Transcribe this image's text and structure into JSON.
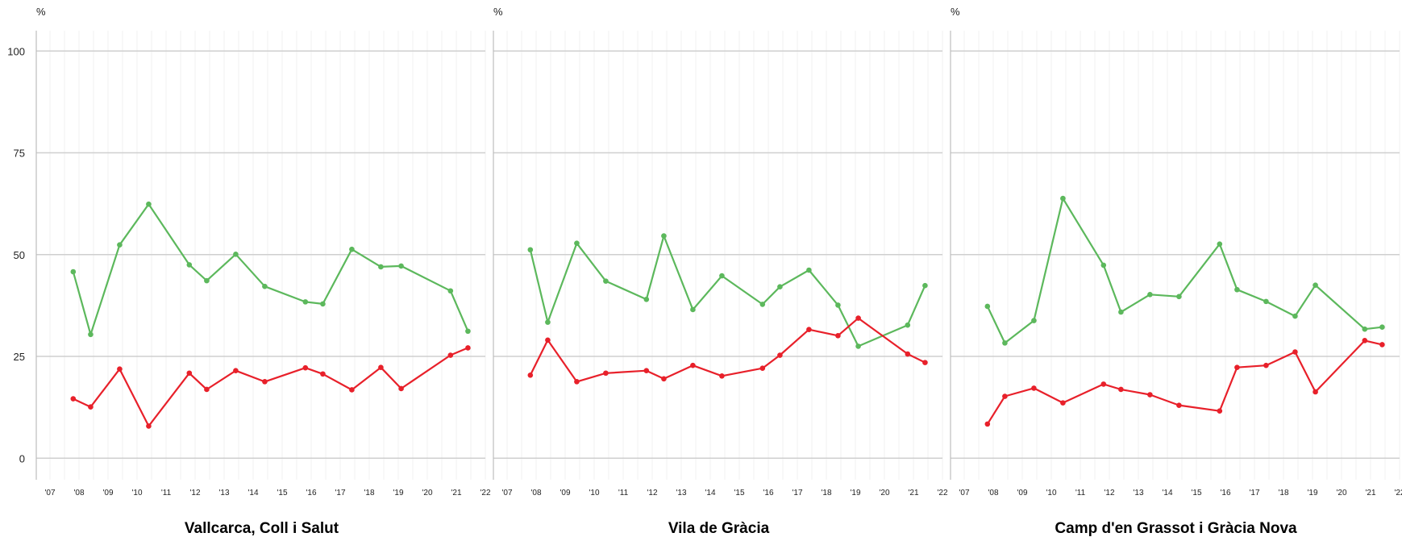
{
  "colors": {
    "green": "#5cb85c",
    "red": "#e8202a",
    "grid": "#cfcfcf",
    "minor_grid": "#f0f0f0",
    "axis": "#bdbdbd"
  },
  "chart_data": [
    {
      "type": "line",
      "title": "Vallcarca, Coll i Salut",
      "unit": "%",
      "ylim": [
        0,
        100
      ],
      "yticks": [
        "0",
        "25",
        "50",
        "75",
        "100"
      ],
      "xticks": [
        "'07",
        "'08",
        "'09",
        "'10",
        "'11",
        "'12",
        "'13",
        "'14",
        "'15",
        "'16",
        "'17",
        "'18",
        "'19",
        "'20",
        "'21",
        "'22"
      ],
      "xlim": [
        2007,
        2022
      ],
      "grid": true,
      "series": [
        {
          "color": "green",
          "x": [
            2007.8,
            2008.4,
            2009.4,
            2010.4,
            2011.8,
            2012.4,
            2013.4,
            2014.4,
            2015.8,
            2016.4,
            2017.4,
            2018.4,
            2019.1,
            2020.8,
            2021.4
          ],
          "values": [
            45.8,
            30.4,
            52.4,
            62.4,
            47.5,
            43.6,
            50.1,
            42.2,
            38.4,
            37.9,
            51.3,
            47.0,
            47.2,
            41.1,
            31.2
          ]
        },
        {
          "color": "red",
          "x": [
            2007.8,
            2008.4,
            2009.4,
            2010.4,
            2011.8,
            2012.4,
            2013.4,
            2014.4,
            2015.8,
            2016.4,
            2017.4,
            2018.4,
            2019.1,
            2020.8,
            2021.4
          ],
          "values": [
            14.6,
            12.6,
            21.9,
            7.9,
            20.9,
            16.9,
            21.5,
            18.8,
            22.2,
            20.7,
            16.8,
            22.3,
            17.1,
            25.3,
            27.1
          ]
        }
      ]
    },
    {
      "type": "line",
      "title": "Vila de Gràcia",
      "unit": "%",
      "ylim": [
        0,
        100
      ],
      "yticks": [],
      "xticks": [
        "'07",
        "'08",
        "'09",
        "'10",
        "'11",
        "'12",
        "'13",
        "'14",
        "'15",
        "'16",
        "'17",
        "'18",
        "'19",
        "'20",
        "'21",
        "'22"
      ],
      "xlim": [
        2007,
        2022
      ],
      "grid": true,
      "series": [
        {
          "color": "green",
          "x": [
            2007.8,
            2008.4,
            2009.4,
            2010.4,
            2011.8,
            2012.4,
            2013.4,
            2014.4,
            2015.8,
            2016.4,
            2017.4,
            2018.4,
            2019.1,
            2020.8,
            2021.4
          ],
          "values": [
            51.2,
            33.4,
            52.8,
            43.5,
            39.0,
            54.6,
            36.5,
            44.8,
            37.8,
            42.1,
            46.2,
            37.6,
            27.5,
            32.7,
            42.4
          ]
        },
        {
          "color": "red",
          "x": [
            2007.8,
            2008.4,
            2009.4,
            2010.4,
            2011.8,
            2012.4,
            2013.4,
            2014.4,
            2015.8,
            2016.4,
            2017.4,
            2018.4,
            2019.1,
            2020.8,
            2021.4
          ],
          "values": [
            20.4,
            29.0,
            18.8,
            20.9,
            21.5,
            19.5,
            22.8,
            20.2,
            22.1,
            25.3,
            31.6,
            30.1,
            34.4,
            25.6,
            23.5
          ]
        }
      ]
    },
    {
      "type": "line",
      "title": "Camp d'en Grassot i Gràcia Nova",
      "unit": "%",
      "ylim": [
        0,
        100
      ],
      "yticks": [],
      "xticks": [
        "'07",
        "'08",
        "'09",
        "'10",
        "'11",
        "'12",
        "'13",
        "'14",
        "'15",
        "'16",
        "'17",
        "'18",
        "'19",
        "'20",
        "'21",
        "'22"
      ],
      "xlim": [
        2007,
        2022
      ],
      "grid": true,
      "series": [
        {
          "color": "green",
          "x": [
            2007.8,
            2008.4,
            2009.4,
            2010.4,
            2011.8,
            2012.4,
            2013.4,
            2014.4,
            2015.8,
            2016.4,
            2017.4,
            2018.4,
            2019.1,
            2020.8,
            2021.4
          ],
          "values": [
            37.3,
            28.3,
            33.8,
            63.8,
            47.4,
            35.9,
            40.2,
            39.7,
            52.6,
            41.4,
            38.5,
            34.9,
            42.5,
            31.7,
            32.2
          ]
        },
        {
          "color": "red",
          "x": [
            2007.8,
            2008.4,
            2009.4,
            2010.4,
            2011.8,
            2012.4,
            2013.4,
            2014.4,
            2015.8,
            2016.4,
            2017.4,
            2018.4,
            2019.1,
            2020.8,
            2021.4
          ],
          "values": [
            8.4,
            15.2,
            17.2,
            13.6,
            18.2,
            16.9,
            15.6,
            13.0,
            11.6,
            22.3,
            22.8,
            26.1,
            16.3,
            28.9,
            27.9
          ]
        }
      ]
    }
  ]
}
